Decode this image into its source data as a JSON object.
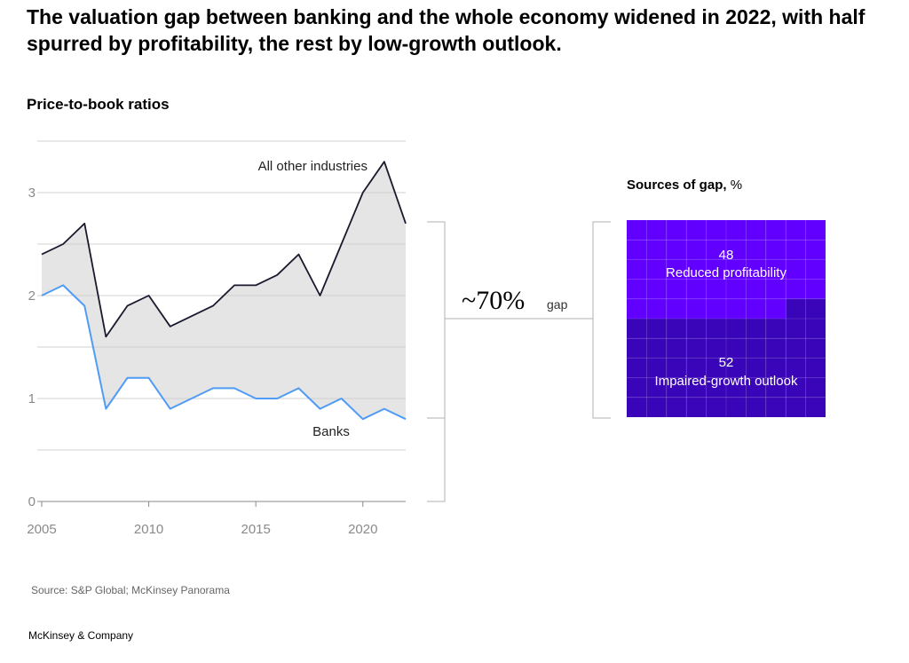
{
  "title": "The valuation gap between banking and the whole economy widened in 2022, with half spurred by profitability, the rest by low-growth outlook.",
  "subtitle": "Price-to-book ratios",
  "source": "Source: S&P Global; McKinsey Panorama",
  "company": "McKinsey & Company",
  "colors": {
    "other": "#1a1a2e",
    "banks": "#4f9bf5",
    "fill": "#e5e5e5",
    "profit": "#6200ff",
    "growth": "#3a04b8"
  },
  "chart_data": [
    {
      "type": "line",
      "title": "Price-to-book ratios",
      "x": [
        2005,
        2006,
        2007,
        2008,
        2009,
        2010,
        2011,
        2012,
        2013,
        2014,
        2015,
        2016,
        2017,
        2018,
        2019,
        2020,
        2021,
        2022
      ],
      "series": [
        {
          "name": "All other industries",
          "values": [
            2.4,
            2.5,
            2.7,
            1.6,
            1.9,
            2.0,
            1.7,
            1.8,
            1.9,
            2.1,
            2.1,
            2.2,
            2.4,
            2.0,
            2.5,
            3.0,
            3.3,
            2.7
          ]
        },
        {
          "name": "Banks",
          "values": [
            2.0,
            2.1,
            1.9,
            0.9,
            1.2,
            1.2,
            0.9,
            1.0,
            1.1,
            1.1,
            1.0,
            1.0,
            1.1,
            0.9,
            1.0,
            0.8,
            0.9,
            0.8
          ]
        }
      ],
      "x_ticks": [
        "2005",
        "2010",
        "2015",
        "2020"
      ],
      "y_ticks": [
        "0",
        "1",
        "2",
        "3"
      ],
      "ylim": [
        0,
        3.5
      ],
      "grid": true,
      "annotation": {
        "value": "~70%",
        "label": "gap"
      }
    },
    {
      "type": "bar",
      "title": "Sources of gap, %",
      "title_bold": "Sources of gap,",
      "title_unit": "%",
      "categories": [
        "Reduced profitability",
        "Impaired-growth outlook"
      ],
      "values": [
        48,
        52
      ]
    }
  ]
}
